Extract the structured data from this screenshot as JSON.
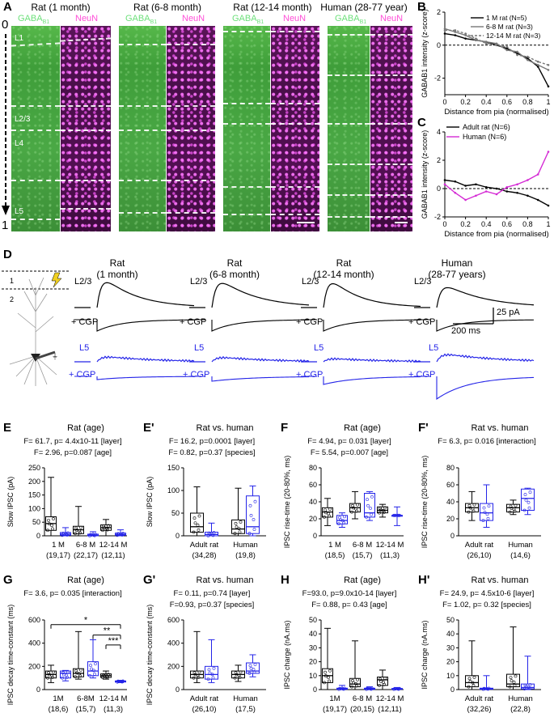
{
  "panel_letters": {
    "A": "A",
    "B": "B",
    "C": "C",
    "D": "D",
    "E": "E",
    "E2": "E'",
    "F": "F",
    "F2": "F'",
    "G": "G",
    "G2": "G'",
    "H": "H",
    "H2": "H'"
  },
  "panelA": {
    "titles": [
      "Rat (1 month)",
      "Rat (6-8 month)",
      "Rat (12-14 month)",
      "Human (28-77 year)"
    ],
    "stain_gaba": "GABA",
    "stain_gaba_sub": "B1",
    "stain_neun": "NeuN",
    "layers": [
      "L1",
      "L2/3",
      "L4",
      "L5",
      "L6"
    ],
    "depth_top": "0",
    "depth_bottom": "1"
  },
  "panelD": {
    "columns": [
      "Rat\n(1 month)",
      "Rat\n(6-8 month)",
      "Rat\n(12-14 month)",
      "Human\n(28-77 years)"
    ],
    "col_line1": [
      "Rat",
      "Rat",
      "Rat",
      "Human"
    ],
    "col_line2": [
      "(1 month)",
      "(6-8 month)",
      "(12-14 month)",
      "(28-77 years)"
    ],
    "row_l23": "L2/3",
    "row_cgp": "+ CGP",
    "row_l5": "L5",
    "scale_y": "25 pA",
    "scale_x": "200 ms",
    "layer_marks": [
      "1",
      "2"
    ]
  },
  "colors": {
    "black": "#000000",
    "blue": "#2424e8",
    "magenta": "#d42ad4",
    "grey": "#888888"
  },
  "chart_data": [
    {
      "id": "B",
      "type": "line",
      "xlabel": "Distance from pia (normalised)",
      "ylabel": "GABAB1 intensity (z-score)",
      "xlim": [
        0,
        1
      ],
      "ylim": [
        -3,
        2
      ],
      "xticks": [
        0,
        0.2,
        0.4,
        0.6,
        0.8,
        1.0
      ],
      "yticks": [
        -2,
        0,
        2
      ],
      "legend": [
        "1 M rat (N=5)",
        "6-8 M rat (N=3)",
        "12-14 M rat (N=3)"
      ],
      "legend_pos": "top-right",
      "series": [
        {
          "name": "1 M rat (N=5)",
          "x": [
            0,
            0.1,
            0.2,
            0.3,
            0.4,
            0.5,
            0.6,
            0.7,
            0.8,
            0.9,
            1.0
          ],
          "y": [
            0.7,
            0.6,
            0.4,
            0.3,
            0.2,
            0.0,
            -0.2,
            -0.5,
            -0.8,
            -1.3,
            -2.5
          ]
        },
        {
          "name": "6-8 M rat (N=3)",
          "x": [
            0,
            0.1,
            0.2,
            0.3,
            0.4,
            0.5,
            0.6,
            0.7,
            0.8,
            0.9,
            1.0
          ],
          "y": [
            1.0,
            0.8,
            0.6,
            0.3,
            0.2,
            0.1,
            -0.3,
            -0.4,
            -0.9,
            -1.2,
            -1.5
          ]
        },
        {
          "name": "12-14 M rat (N=3)",
          "x": [
            0,
            0.1,
            0.2,
            0.3,
            0.4,
            0.5,
            0.6,
            0.7,
            0.8,
            0.9,
            1.0
          ],
          "y": [
            0.9,
            0.9,
            0.7,
            0.4,
            0.1,
            0.0,
            -0.1,
            -0.6,
            -0.7,
            -1.0,
            -1.2
          ]
        }
      ]
    },
    {
      "id": "C",
      "type": "line",
      "xlabel": "Distance from pia (normalised)",
      "ylabel": "GABAB1 intensity (z-score)",
      "xlim": [
        0,
        1
      ],
      "ylim": [
        -2,
        4
      ],
      "xticks": [
        0,
        0.2,
        0.4,
        0.6,
        0.8,
        1.0
      ],
      "yticks": [
        -2,
        0,
        2,
        4
      ],
      "legend": [
        "Adult rat (N=6)",
        "Human (N=6)"
      ],
      "legend_pos": "top-left",
      "series": [
        {
          "name": "Adult rat (N=6)",
          "x": [
            0,
            0.1,
            0.2,
            0.3,
            0.4,
            0.5,
            0.6,
            0.7,
            0.8,
            0.9,
            1.0
          ],
          "y": [
            0.6,
            0.5,
            0.2,
            0.3,
            0.1,
            0.0,
            -0.2,
            -0.3,
            -0.5,
            -0.8,
            -1.2
          ]
        },
        {
          "name": "Human (N=6)",
          "x": [
            0,
            0.1,
            0.2,
            0.3,
            0.4,
            0.5,
            0.6,
            0.7,
            0.8,
            0.9,
            1.0
          ],
          "y": [
            0.3,
            -0.3,
            -0.8,
            -0.5,
            -0.2,
            -0.4,
            0.1,
            0.3,
            0.6,
            1.0,
            2.6
          ]
        }
      ]
    },
    {
      "id": "E",
      "type": "box",
      "title": "Rat (age)",
      "stats": [
        "F= 61.7, p= 4.4x10-11 [layer]",
        "F= 2.96, p=0.087 [age]"
      ],
      "ylabel": "Slow IPSC (pA)",
      "ylim": [
        0,
        250
      ],
      "yticks": [
        0,
        50,
        100,
        150,
        200,
        250
      ],
      "categories": [
        "1 M",
        "6-8 M",
        "12-14 M"
      ],
      "n": [
        "(19,17)",
        "(22,17)",
        "(12,11)"
      ],
      "l23": [
        {
          "min": 0,
          "q1": 20,
          "med": 45,
          "q3": 70,
          "max": 215
        },
        {
          "min": 0,
          "q1": 8,
          "med": 22,
          "q3": 35,
          "max": 108
        },
        {
          "min": 0,
          "q1": 20,
          "med": 30,
          "q3": 40,
          "max": 60
        }
      ],
      "l5": [
        {
          "min": 0,
          "q1": 2,
          "med": 6,
          "q3": 12,
          "max": 30
        },
        {
          "min": 0,
          "q1": 0,
          "med": 2,
          "q3": 6,
          "max": 15
        },
        {
          "min": 0,
          "q1": 2,
          "med": 5,
          "q3": 10,
          "max": 22
        }
      ]
    },
    {
      "id": "E2",
      "type": "box",
      "title": "Rat vs. human",
      "stats": [
        "F= 16.2, p=0.0001 [layer]",
        "F= 0.82, p=0.37 [species]"
      ],
      "ylabel": "Slow IPSC (pA)",
      "ylim": [
        0,
        150
      ],
      "yticks": [
        0,
        50,
        100,
        150
      ],
      "categories": [
        "Adult rat",
        "Human"
      ],
      "n": [
        "(34,28)",
        "(19,8)"
      ],
      "l23": [
        {
          "min": 0,
          "q1": 8,
          "med": 20,
          "q3": 50,
          "max": 108
        },
        {
          "min": 0,
          "q1": 5,
          "med": 15,
          "q3": 35,
          "max": 105
        }
      ],
      "l5": [
        {
          "min": 0,
          "q1": 0,
          "med": 3,
          "q3": 8,
          "max": 28
        },
        {
          "min": 0,
          "q1": 5,
          "med": 20,
          "q3": 88,
          "max": 110
        }
      ]
    },
    {
      "id": "F",
      "type": "box",
      "title": "Rat (age)",
      "stats": [
        "F= 4.94, p= 0.031 [layer]",
        "F= 5.54, p=0.007 [age]"
      ],
      "ylabel": "IPSC rise-time (20-80%, ms)",
      "ylim": [
        0,
        80
      ],
      "yticks": [
        0,
        20,
        40,
        60,
        80
      ],
      "categories": [
        "1 M",
        "6-8 M",
        "12-14 M"
      ],
      "n": [
        "(18,5)",
        "(15,7)",
        "(11,3)"
      ],
      "l23": [
        {
          "min": 12,
          "q1": 22,
          "med": 28,
          "q3": 33,
          "max": 44
        },
        {
          "min": 20,
          "q1": 28,
          "med": 33,
          "q3": 38,
          "max": 52
        },
        {
          "min": 22,
          "q1": 27,
          "med": 30,
          "q3": 34,
          "max": 37
        }
      ],
      "l5": [
        {
          "min": 10,
          "q1": 14,
          "med": 18,
          "q3": 24,
          "max": 27
        },
        {
          "min": 18,
          "q1": 22,
          "med": 27,
          "q3": 50,
          "max": 52
        },
        {
          "min": 12,
          "q1": 24,
          "med": 24,
          "q3": 24,
          "max": 34
        }
      ]
    },
    {
      "id": "F2",
      "type": "box",
      "title": "Rat vs. human",
      "stats": [
        "F= 6.3, p= 0.016 [interaction]"
      ],
      "ylabel": "IPSC rise-time (20-80%, ms)",
      "ylim": [
        0,
        80
      ],
      "yticks": [
        0,
        20,
        40,
        60,
        80
      ],
      "categories": [
        "Adult rat",
        "Human"
      ],
      "n": [
        "(26,10)",
        "(14,6)"
      ],
      "l23": [
        {
          "min": 18,
          "q1": 28,
          "med": 33,
          "q3": 38,
          "max": 52
        },
        {
          "min": 25,
          "q1": 28,
          "med": 33,
          "q3": 37,
          "max": 42
        }
      ],
      "l5": [
        {
          "min": 10,
          "q1": 18,
          "med": 27,
          "q3": 38,
          "max": 60
        },
        {
          "min": 25,
          "q1": 30,
          "med": 44,
          "q3": 55,
          "max": 56
        }
      ]
    },
    {
      "id": "G",
      "type": "box",
      "title": "Rat (age)",
      "stats": [
        "F= 3.6, p= 0.035 [interaction]"
      ],
      "ylabel": "IPSC decay time-constant (ms)",
      "ylim": [
        0,
        600
      ],
      "yticks": [
        0,
        200,
        400,
        600
      ],
      "categories": [
        "1M",
        "6-8M",
        "12-14 M"
      ],
      "n": [
        "(18,6)",
        "(15,7)",
        "(11,3)"
      ],
      "significance": [
        "*",
        "**",
        "***"
      ],
      "l23": [
        {
          "min": 60,
          "q1": 100,
          "med": 130,
          "q3": 160,
          "max": 210
        },
        {
          "min": 90,
          "q1": 110,
          "med": 140,
          "q3": 180,
          "max": 500
        },
        {
          "min": 90,
          "q1": 105,
          "med": 120,
          "q3": 135,
          "max": 160
        }
      ],
      "l5": [
        {
          "min": 75,
          "q1": 100,
          "med": 140,
          "q3": 160,
          "max": 165
        },
        {
          "min": 100,
          "q1": 120,
          "med": 160,
          "q3": 240,
          "max": 430
        },
        {
          "min": 60,
          "q1": 65,
          "med": 70,
          "q3": 75,
          "max": 80
        }
      ]
    },
    {
      "id": "G2",
      "type": "box",
      "title": "Rat vs. human",
      "stats": [
        "F= 0.11, p=0.74 [layer]",
        "F=0.93, p=0.37 [species]"
      ],
      "ylabel": "IPSC decay time-constant (ms)",
      "ylim": [
        0,
        600
      ],
      "yticks": [
        0,
        200,
        400,
        600
      ],
      "categories": [
        "Adult rat",
        "Human"
      ],
      "n": [
        "(26,10)",
        "(17,5)"
      ],
      "l23": [
        {
          "min": 60,
          "q1": 100,
          "med": 130,
          "q3": 160,
          "max": 500
        },
        {
          "min": 70,
          "q1": 100,
          "med": 130,
          "q3": 160,
          "max": 210
        }
      ],
      "l5": [
        {
          "min": 60,
          "q1": 90,
          "med": 130,
          "q3": 200,
          "max": 430
        },
        {
          "min": 110,
          "q1": 140,
          "med": 160,
          "q3": 230,
          "max": 300
        }
      ]
    },
    {
      "id": "H",
      "type": "box",
      "title": "Rat (age)",
      "stats": [
        "F=93.0, p=9.0x10-14 [layer]",
        "F= 0.88, p= 0.43 [age]"
      ],
      "ylabel": "IPSC charge (nA.ms)",
      "ylim": [
        0,
        50
      ],
      "yticks": [
        0,
        10,
        20,
        30,
        40,
        50
      ],
      "categories": [
        "1M",
        "6-8 M",
        "12-14 M"
      ],
      "n": [
        "(19,17)",
        "(20,15)",
        "(12,11)"
      ],
      "l23": [
        {
          "min": 0,
          "q1": 5,
          "med": 10,
          "q3": 15,
          "max": 44
        },
        {
          "min": 0,
          "q1": 2,
          "med": 4,
          "q3": 8,
          "max": 35
        },
        {
          "min": 0,
          "q1": 3,
          "med": 7,
          "q3": 9,
          "max": 14
        }
      ],
      "l5": [
        {
          "min": 0,
          "q1": 0.2,
          "med": 0.5,
          "q3": 1,
          "max": 3
        },
        {
          "min": 0,
          "q1": 0.2,
          "med": 0.5,
          "q3": 1,
          "max": 2
        },
        {
          "min": 0,
          "q1": 0.2,
          "med": 0.4,
          "q3": 0.8,
          "max": 1.5
        }
      ]
    },
    {
      "id": "H2",
      "type": "box",
      "title": "Rat vs. human",
      "stats": [
        "F= 24.9, p= 4.5x10-6 [layer]",
        "F= 1.02, p= 0.32 [species]"
      ],
      "ylabel": "IPSC charge (nA.ms)",
      "ylim": [
        0,
        50
      ],
      "yticks": [
        0,
        10,
        20,
        30,
        40,
        50
      ],
      "categories": [
        "Adult rat",
        "Human"
      ],
      "n": [
        "(32,26)",
        "(22,8)"
      ],
      "l23": [
        {
          "min": 0,
          "q1": 2,
          "med": 5,
          "q3": 10,
          "max": 35
        },
        {
          "min": 0,
          "q1": 2,
          "med": 4,
          "q3": 11,
          "max": 45
        }
      ],
      "l5": [
        {
          "min": 0,
          "q1": 0.2,
          "med": 0.5,
          "q3": 1,
          "max": 10
        },
        {
          "min": 0,
          "q1": 0.5,
          "med": 1.5,
          "q3": 4,
          "max": 24
        }
      ]
    }
  ]
}
